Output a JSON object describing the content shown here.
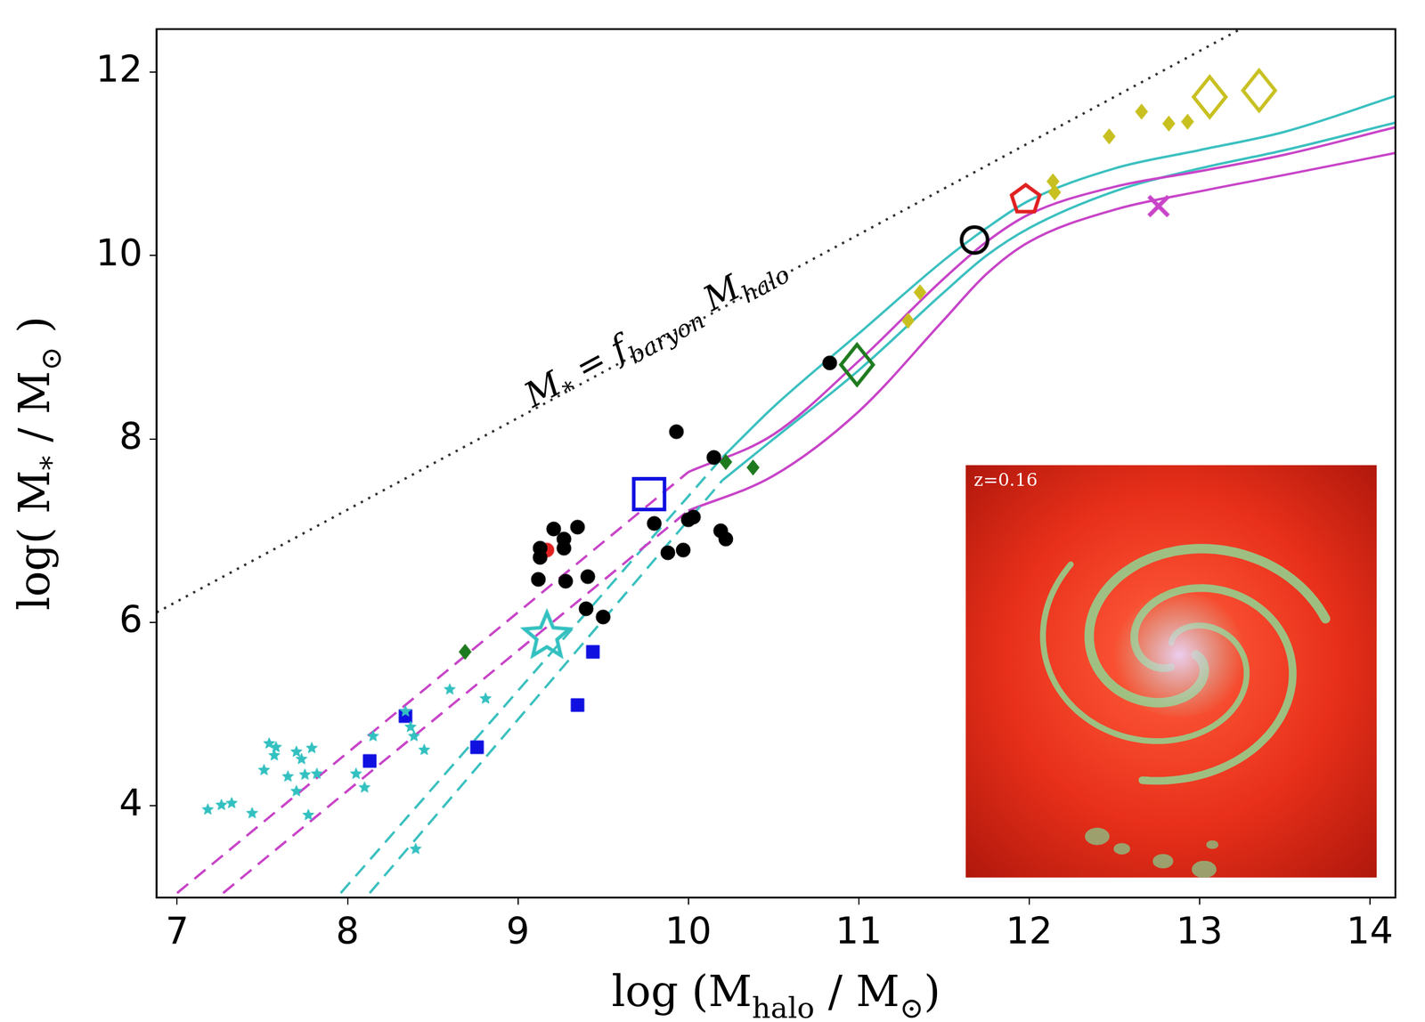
{
  "chart_data": {
    "type": "scatter",
    "xlim": [
      6.88,
      14.15
    ],
    "ylim": [
      3.0,
      12.47
    ],
    "xticks": [
      7,
      8,
      9,
      10,
      11,
      12,
      13,
      14
    ],
    "yticks": [
      4,
      6,
      8,
      10,
      12
    ],
    "grid": false,
    "x_label": [
      {
        "text": "log (M"
      },
      {
        "text": "halo",
        "sub": true
      },
      {
        "text": " / M"
      },
      {
        "text": "⊙",
        "sub": true
      },
      {
        "text": ")"
      }
    ],
    "y_label": [
      {
        "text": "log( M"
      },
      {
        "text": "*",
        "sub": true
      },
      {
        "text": " / M"
      },
      {
        "text": "⊙",
        "sub": true
      },
      {
        "text": " )"
      }
    ],
    "annotations": [
      {
        "segments": [
          {
            "text": "M"
          },
          {
            "text": "*",
            "sub": true
          },
          {
            "text": " = f"
          },
          {
            "text": "baryon",
            "sub": true
          },
          {
            "text": " M"
          },
          {
            "text": "halo",
            "sub": true
          }
        ],
        "x": 9.8,
        "y": 9.2
      }
    ],
    "inset": {
      "text": "z=0.16"
    },
    "series": [
      {
        "type": "line",
        "color": "#333333",
        "line_style": "dotted",
        "values": [
          [
            6.88,
            6.11
          ],
          [
            13.24,
            12.47
          ]
        ]
      },
      {
        "type": "line",
        "color": "#c844c8",
        "line_style": "dashed",
        "values": [
          [
            7.0,
            3.05
          ],
          [
            10.0,
            7.64
          ]
        ]
      },
      {
        "type": "line",
        "color": "#c844c8",
        "line_style": "dashed",
        "values": [
          [
            7.27,
            3.05
          ],
          [
            10.0,
            7.22
          ]
        ]
      },
      {
        "type": "line",
        "color": "#3cc0c0",
        "line_style": "dashed",
        "values": [
          [
            7.96,
            3.05
          ],
          [
            10.2,
            7.8
          ]
        ]
      },
      {
        "type": "line",
        "color": "#3cc0c0",
        "line_style": "dashed",
        "values": [
          [
            8.13,
            3.05
          ],
          [
            10.2,
            7.55
          ]
        ]
      },
      {
        "type": "line",
        "color": "#c844c8",
        "line_style": "solid",
        "values": [
          [
            10.0,
            7.64
          ],
          [
            10.5,
            8.05
          ],
          [
            11.0,
            8.85
          ],
          [
            11.5,
            9.75
          ],
          [
            11.75,
            10.15
          ],
          [
            12.0,
            10.45
          ],
          [
            12.5,
            10.75
          ],
          [
            13.0,
            10.92
          ],
          [
            13.5,
            11.1
          ],
          [
            14.15,
            11.4
          ]
        ]
      },
      {
        "type": "line",
        "color": "#c844c8",
        "line_style": "solid",
        "values": [
          [
            10.0,
            7.22
          ],
          [
            10.5,
            7.6
          ],
          [
            11.0,
            8.3
          ],
          [
            11.5,
            9.3
          ],
          [
            11.75,
            9.8
          ],
          [
            12.0,
            10.15
          ],
          [
            12.5,
            10.5
          ],
          [
            13.0,
            10.7
          ],
          [
            13.5,
            10.88
          ],
          [
            14.15,
            11.12
          ]
        ]
      },
      {
        "type": "line",
        "color": "#3cc0c0",
        "line_style": "solid",
        "values": [
          [
            10.2,
            7.8
          ],
          [
            10.5,
            8.35
          ],
          [
            11.0,
            9.15
          ],
          [
            11.5,
            9.95
          ],
          [
            11.75,
            10.3
          ],
          [
            12.0,
            10.6
          ],
          [
            12.5,
            10.95
          ],
          [
            13.0,
            11.15
          ],
          [
            13.5,
            11.35
          ],
          [
            14.15,
            11.74
          ]
        ]
      },
      {
        "type": "line",
        "color": "#3cc0c0",
        "line_style": "solid",
        "values": [
          [
            10.2,
            7.55
          ],
          [
            10.5,
            8.0
          ],
          [
            11.0,
            8.75
          ],
          [
            11.5,
            9.6
          ],
          [
            11.75,
            10.0
          ],
          [
            12.0,
            10.3
          ],
          [
            12.5,
            10.7
          ],
          [
            13.0,
            10.95
          ],
          [
            13.5,
            11.15
          ],
          [
            14.15,
            11.45
          ]
        ]
      },
      {
        "type": "scatter",
        "color": "#33c0c0",
        "marker": "star",
        "values": [
          [
            7.18,
            3.96
          ],
          [
            7.26,
            4.01
          ],
          [
            7.32,
            4.03
          ],
          [
            7.44,
            3.92
          ],
          [
            7.51,
            4.39
          ],
          [
            7.54,
            4.68
          ],
          [
            7.58,
            4.64
          ],
          [
            7.57,
            4.55
          ],
          [
            7.65,
            4.32
          ],
          [
            7.7,
            4.59
          ],
          [
            7.7,
            4.16
          ],
          [
            7.73,
            4.51
          ],
          [
            7.75,
            4.34
          ],
          [
            7.79,
            4.63
          ],
          [
            7.77,
            3.9
          ],
          [
            7.82,
            4.35
          ],
          [
            8.05,
            4.35
          ],
          [
            8.1,
            4.2
          ],
          [
            8.15,
            4.76
          ],
          [
            8.34,
            5.03
          ],
          [
            8.37,
            4.86
          ],
          [
            8.39,
            4.76
          ],
          [
            8.45,
            4.61
          ],
          [
            8.6,
            5.27
          ],
          [
            8.81,
            5.17
          ],
          [
            8.4,
            3.53
          ]
        ]
      },
      {
        "type": "scatter",
        "color": "#1010e0",
        "marker": "square",
        "values": [
          [
            8.13,
            4.49
          ],
          [
            8.34,
            4.98
          ],
          [
            8.76,
            4.64
          ],
          [
            9.35,
            5.1
          ],
          [
            9.44,
            5.68
          ]
        ]
      },
      {
        "type": "scatter",
        "color": "#000000",
        "marker": "circle",
        "values": [
          [
            9.13,
            6.81
          ],
          [
            9.13,
            6.71
          ],
          [
            9.27,
            6.81
          ],
          [
            9.12,
            6.47
          ],
          [
            9.28,
            6.45
          ],
          [
            9.21,
            7.02
          ],
          [
            9.27,
            6.91
          ],
          [
            9.35,
            7.04
          ],
          [
            9.41,
            6.5
          ],
          [
            9.4,
            6.15
          ],
          [
            9.5,
            6.06
          ],
          [
            9.8,
            7.08
          ],
          [
            9.88,
            6.76
          ],
          [
            9.97,
            6.79
          ],
          [
            9.93,
            8.08
          ],
          [
            10.0,
            7.12
          ],
          [
            10.03,
            7.15
          ],
          [
            10.15,
            7.8
          ],
          [
            10.19,
            7.0
          ],
          [
            10.22,
            6.91
          ],
          [
            10.83,
            8.83
          ]
        ]
      },
      {
        "type": "scatter",
        "color": "#e02020",
        "marker": "circle",
        "values": [
          [
            9.17,
            6.79
          ]
        ]
      },
      {
        "type": "scatter",
        "color": "#1e7a1e",
        "marker": "diamond",
        "values": [
          [
            8.69,
            5.68
          ],
          [
            10.22,
            7.75
          ],
          [
            10.38,
            7.69
          ]
        ]
      },
      {
        "type": "scatter",
        "color": "#c8c020",
        "marker": "diamond",
        "values": [
          [
            11.29,
            9.29
          ],
          [
            11.36,
            9.6
          ],
          [
            12.14,
            10.81
          ],
          [
            12.15,
            10.69
          ],
          [
            12.47,
            11.3
          ],
          [
            12.66,
            11.57
          ],
          [
            12.82,
            11.44
          ],
          [
            12.93,
            11.46
          ]
        ]
      },
      {
        "type": "scatter",
        "color": "#33c0c0",
        "marker": "open star",
        "values": [
          [
            9.17,
            5.85
          ]
        ]
      },
      {
        "type": "scatter",
        "color": "#1010e0",
        "marker": "open square",
        "values": [
          [
            9.77,
            7.4
          ]
        ]
      },
      {
        "type": "scatter",
        "color": "#1e7a1e",
        "marker": "open diamond",
        "values": [
          [
            10.99,
            8.81
          ]
        ]
      },
      {
        "type": "scatter",
        "color": "#000000",
        "marker": "open circle",
        "values": [
          [
            11.68,
            10.17
          ]
        ]
      },
      {
        "type": "scatter",
        "color": "#e02020",
        "marker": "open pentagon",
        "values": [
          [
            11.98,
            10.61
          ]
        ]
      },
      {
        "type": "scatter",
        "color": "#c844c8",
        "marker": "x",
        "values": [
          [
            12.76,
            10.54
          ]
        ]
      },
      {
        "type": "scatter",
        "color": "#c8c020",
        "marker": "open diamond",
        "values": [
          [
            13.06,
            11.73
          ],
          [
            13.35,
            11.8
          ]
        ]
      }
    ]
  }
}
